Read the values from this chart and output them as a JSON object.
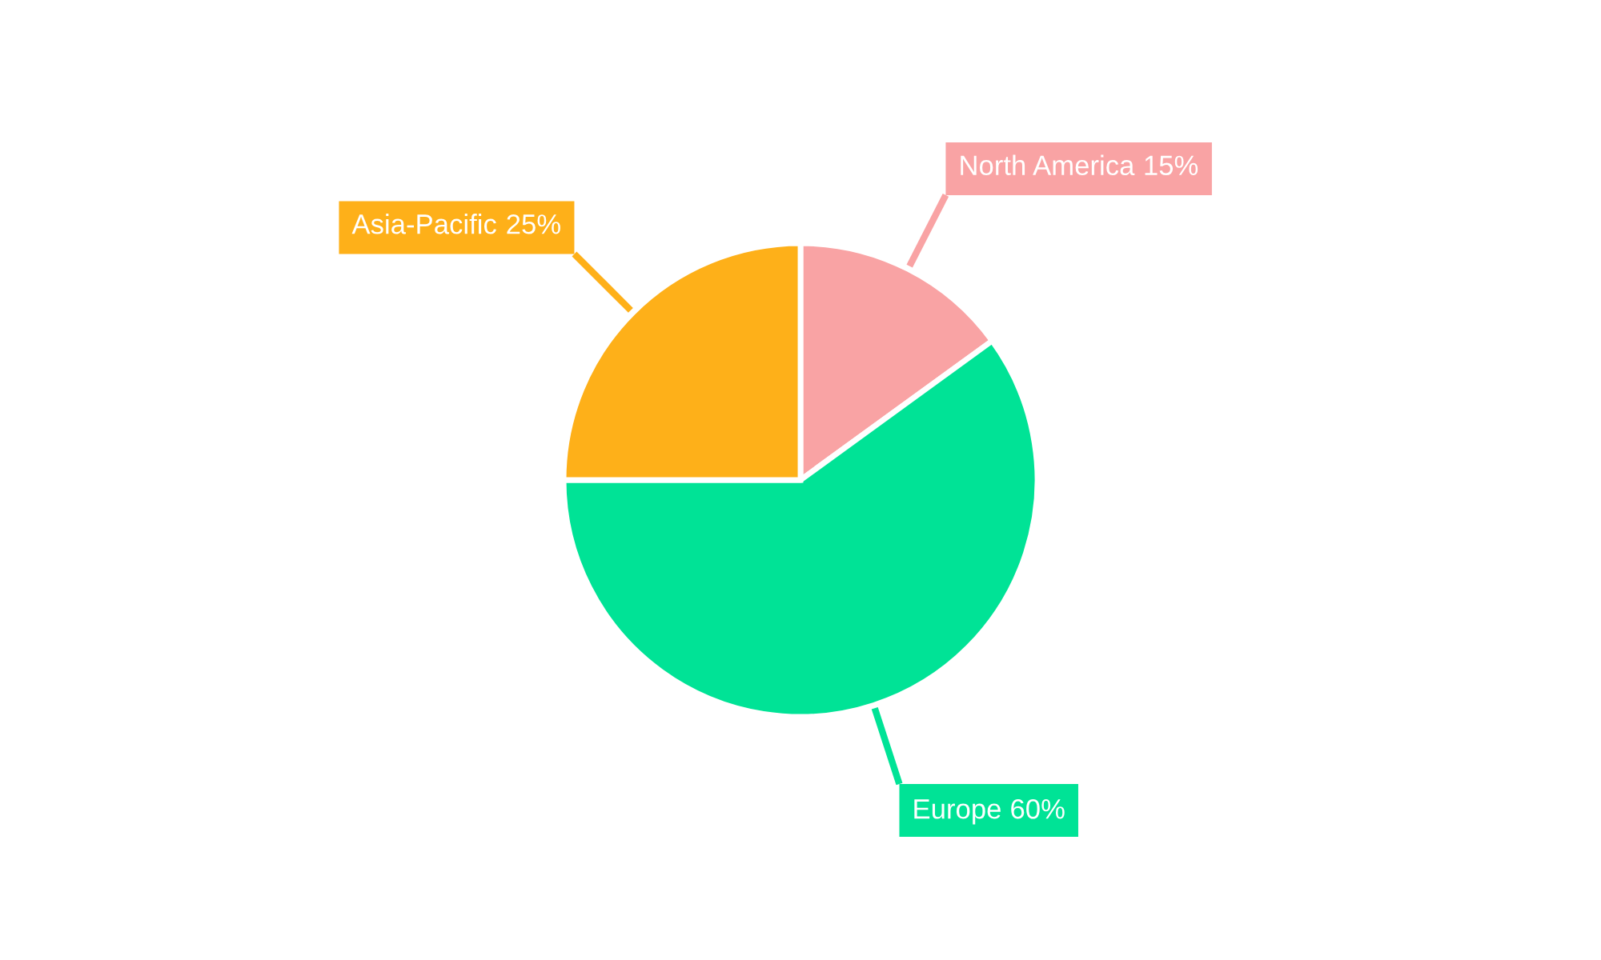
{
  "chart_data": {
    "type": "pie",
    "categories": [
      "North America",
      "Europe",
      "Asia-Pacific"
    ],
    "values": [
      15,
      60,
      25
    ],
    "value_labels": [
      "15%",
      "60%",
      "25%"
    ],
    "colors": [
      "#f9a3a4",
      "#00e396",
      "#feb019"
    ]
  }
}
